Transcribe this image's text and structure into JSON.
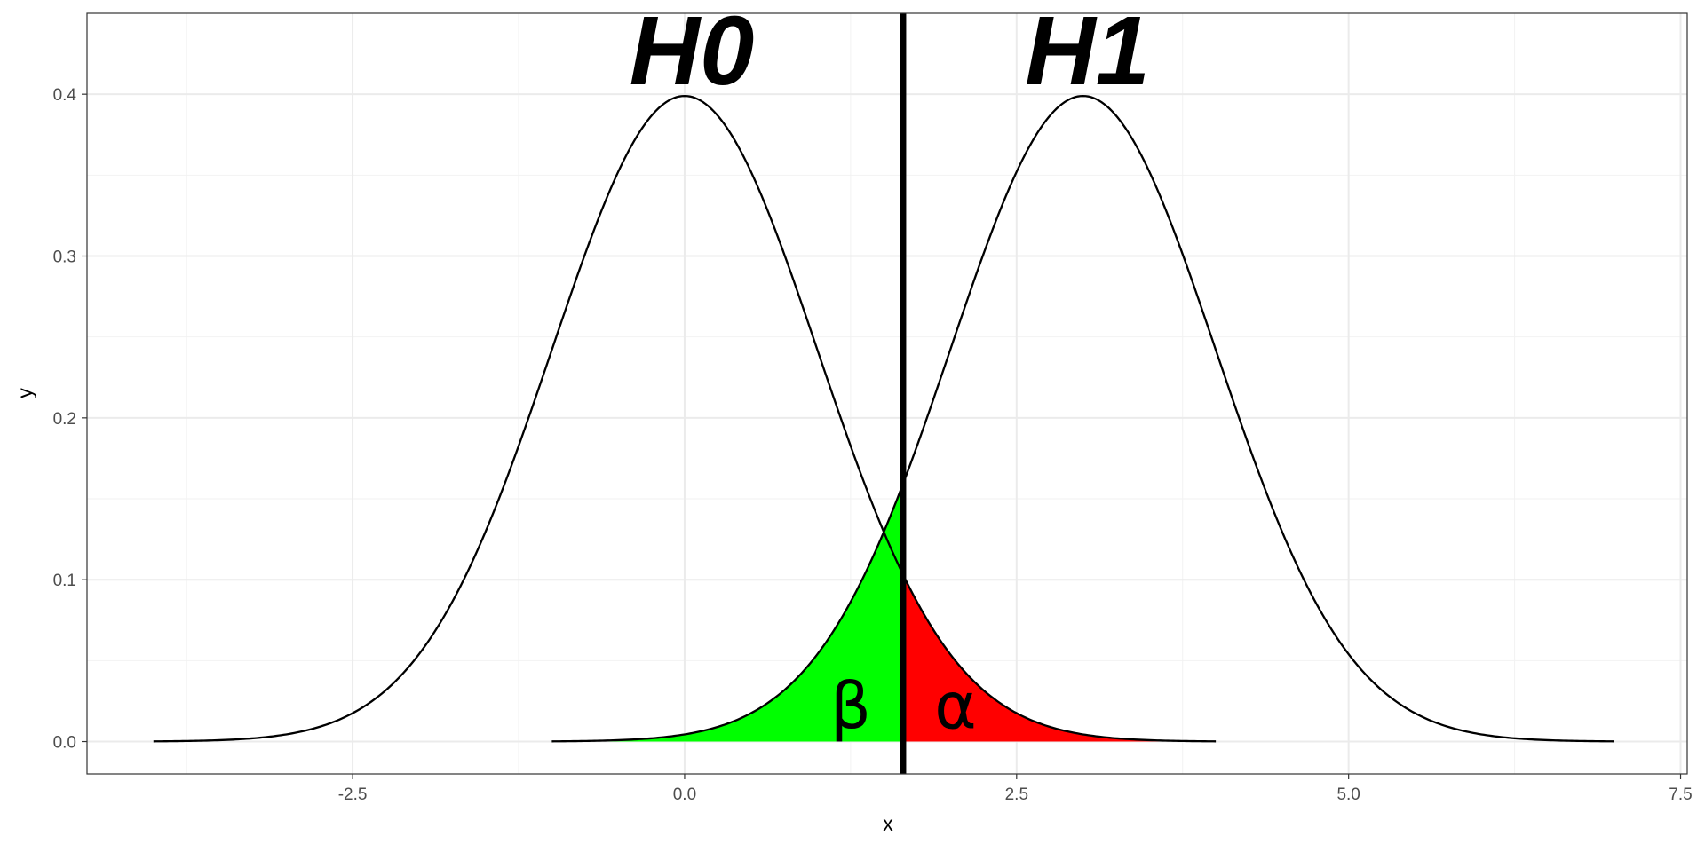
{
  "chart_data": {
    "type": "area",
    "xlabel": "x",
    "ylabel": "y",
    "xlim": [
      -4.5,
      7.55
    ],
    "ylim": [
      -0.02,
      0.45
    ],
    "xticks": [
      -2.5,
      0.0,
      2.5,
      5.0,
      7.5
    ],
    "xtick_labels": [
      "-2.5",
      "0.0",
      "2.5",
      "5.0",
      "7.5"
    ],
    "yticks": [
      0.0,
      0.1,
      0.2,
      0.3,
      0.4
    ],
    "ytick_labels": [
      "0.0",
      "0.1",
      "0.2",
      "0.3",
      "0.4"
    ],
    "grid": true,
    "critical_value": 1.645,
    "series": [
      {
        "name": "H0",
        "distribution": "normal",
        "mean": 0,
        "sd": 1,
        "x_range": [
          -4,
          4
        ],
        "peak": 0.399,
        "label": "H0"
      },
      {
        "name": "H1",
        "distribution": "normal",
        "mean": 3,
        "sd": 1,
        "x_range": [
          -1,
          7
        ],
        "peak": 0.399,
        "label": "H1"
      }
    ],
    "shaded_regions": [
      {
        "name": "beta",
        "label": "β",
        "under": "H1",
        "x_range": [
          -1,
          1.645
        ],
        "color": "#00ff00"
      },
      {
        "name": "alpha",
        "label": "α",
        "under": "H0",
        "x_range": [
          1.645,
          4
        ],
        "color": "#ff0000"
      }
    ]
  }
}
